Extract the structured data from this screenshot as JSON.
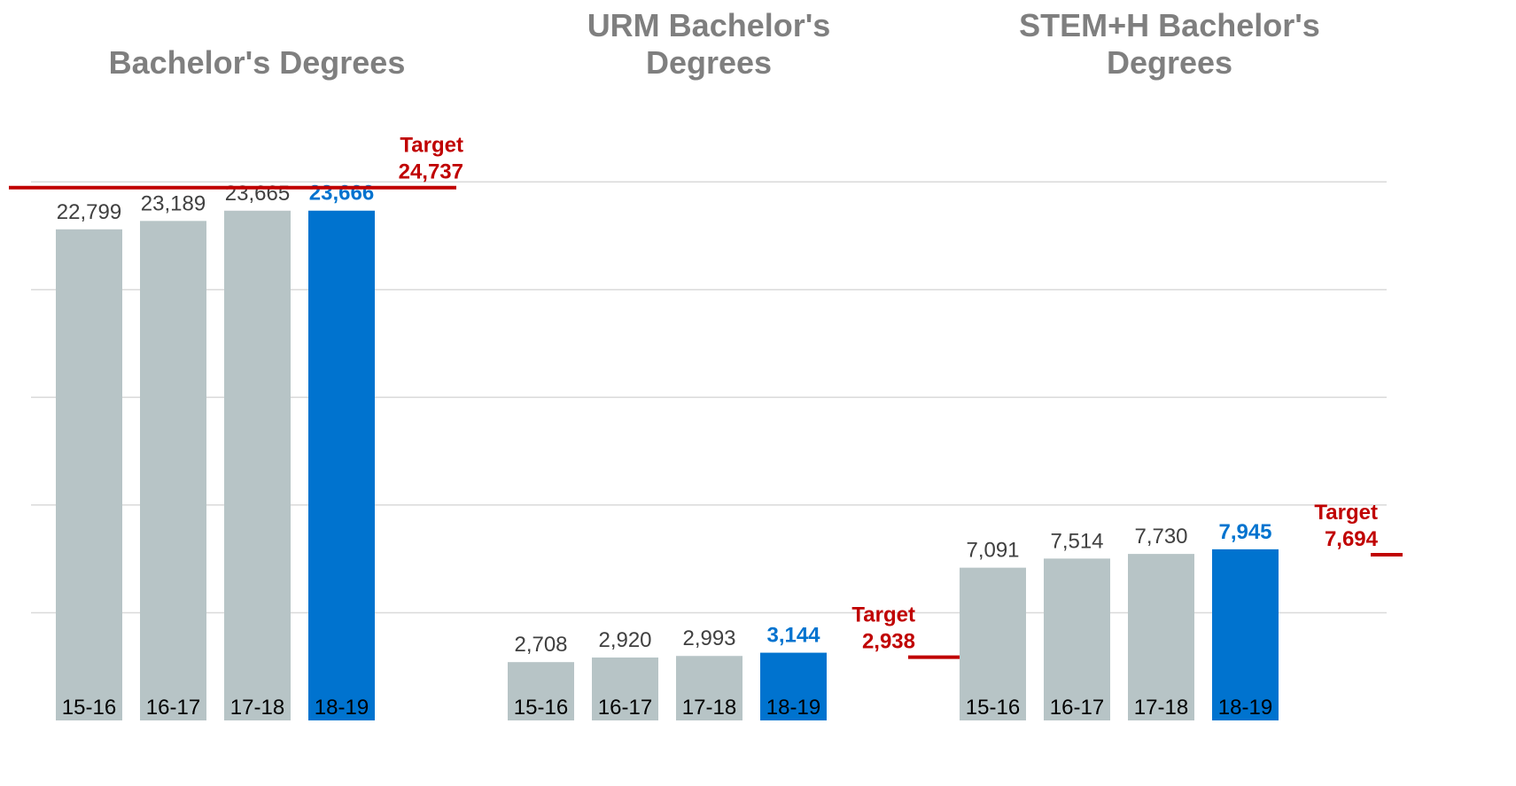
{
  "chart_data": [
    {
      "type": "bar",
      "title": "Bachelor's Degrees",
      "categories": [
        "15-16",
        "16-17",
        "17-18",
        "18-19"
      ],
      "values": [
        22799,
        23189,
        23665,
        23666
      ],
      "value_labels": [
        "22,799",
        "23,189",
        "23,665",
        "23,666"
      ],
      "colors": [
        "#b7c4c6",
        "#b7c4c6",
        "#b7c4c6",
        "#0073cf"
      ],
      "target": {
        "label": "Target",
        "value": 24737,
        "value_label": "24,737",
        "color": "#c00000"
      },
      "ylim": [
        0,
        26000
      ],
      "yticks": [
        5000,
        10000,
        15000,
        20000,
        25000
      ],
      "grid": true
    },
    {
      "type": "bar",
      "title": "URM Bachelor's Degrees",
      "categories": [
        "15-16",
        "16-17",
        "17-18",
        "18-19"
      ],
      "values": [
        2708,
        2920,
        2993,
        3144
      ],
      "value_labels": [
        "2,708",
        "2,920",
        "2,993",
        "3,144"
      ],
      "colors": [
        "#b7c4c6",
        "#b7c4c6",
        "#b7c4c6",
        "#0073cf"
      ],
      "target": {
        "label": "Target",
        "value": 2938,
        "value_label": "2,938",
        "color": "#c00000"
      },
      "ylim": [
        0,
        26000
      ],
      "yticks": [
        5000,
        10000,
        15000,
        20000,
        25000
      ],
      "grid": true
    },
    {
      "type": "bar",
      "title": "STEM+H Bachelor's Degrees",
      "categories": [
        "15-16",
        "16-17",
        "17-18",
        "18-19"
      ],
      "values": [
        7091,
        7514,
        7730,
        7945
      ],
      "value_labels": [
        "7,091",
        "7,514",
        "7,730",
        "7,945"
      ],
      "colors": [
        "#b7c4c6",
        "#b7c4c6",
        "#b7c4c6",
        "#0073cf"
      ],
      "target": {
        "label": "Target",
        "value": 7694,
        "value_label": "7,694",
        "color": "#c00000"
      },
      "ylim": [
        0,
        26000
      ],
      "yticks": [
        5000,
        10000,
        15000,
        20000,
        25000
      ],
      "grid": true
    }
  ]
}
